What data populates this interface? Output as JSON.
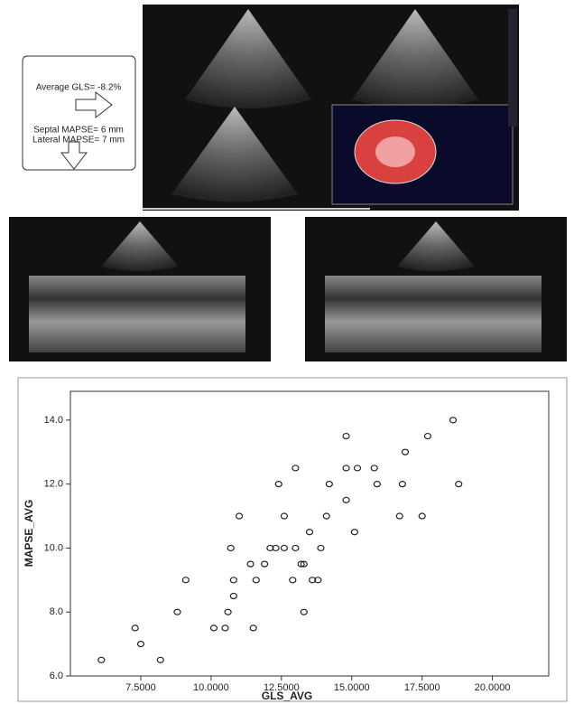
{
  "annotation": {
    "gls": "Average GLS= -8.2%",
    "septal": "Septal MAPSE= 6 mm",
    "lateral": "Lateral MAPSE= 7 mm"
  },
  "chart_data": {
    "type": "scatter",
    "x_label": "GLS_AVG",
    "y_label": "MAPSE_AVG",
    "color": "#222222",
    "x": [
      6.1,
      7.3,
      7.5,
      8.2,
      8.8,
      9.1,
      10.1,
      10.5,
      10.6,
      10.7,
      10.8,
      10.8,
      11.0,
      11.4,
      11.5,
      11.6,
      11.9,
      12.1,
      12.3,
      12.4,
      12.6,
      12.6,
      12.9,
      13.0,
      13.0,
      13.2,
      13.3,
      13.3,
      13.5,
      13.6,
      13.8,
      13.9,
      14.1,
      14.2,
      14.8,
      14.8,
      14.8,
      15.2,
      15.1,
      15.8,
      15.9,
      16.9,
      16.7,
      16.8,
      17.5,
      17.7,
      18.6,
      18.8
    ],
    "values": [
      6.5,
      7.5,
      7.0,
      6.5,
      8.0,
      9.0,
      7.5,
      7.5,
      8.0,
      10.0,
      8.5,
      9.0,
      11.0,
      9.5,
      7.5,
      9.0,
      9.5,
      10.0,
      10.0,
      12.0,
      11.0,
      10.0,
      9.0,
      10.0,
      12.5,
      9.5,
      9.5,
      8.0,
      10.5,
      9.0,
      9.0,
      10.0,
      11.0,
      12.0,
      13.5,
      12.5,
      11.5,
      12.5,
      10.5,
      12.5,
      12.0,
      13.0,
      11.0,
      12.0,
      11.0,
      13.5,
      14.0,
      12.0
    ],
    "xlim": [
      5,
      22
    ],
    "ylim": [
      6,
      14.9
    ],
    "xticks": [
      {
        "value": 7.5,
        "label": "7.5000"
      },
      {
        "value": 10,
        "label": "10.0000"
      },
      {
        "value": 12.5,
        "label": "12.5000"
      },
      {
        "value": 15,
        "label": "15.0000"
      },
      {
        "value": 17.5,
        "label": "17.5000"
      },
      {
        "value": 20,
        "label": "20.0000"
      }
    ],
    "yticks": [
      {
        "value": 6,
        "label": "6.0"
      },
      {
        "value": 8,
        "label": "8.0"
      },
      {
        "value": 10,
        "label": "10.0"
      },
      {
        "value": 12,
        "label": "12.0"
      },
      {
        "value": 14,
        "label": "14.0"
      }
    ]
  }
}
